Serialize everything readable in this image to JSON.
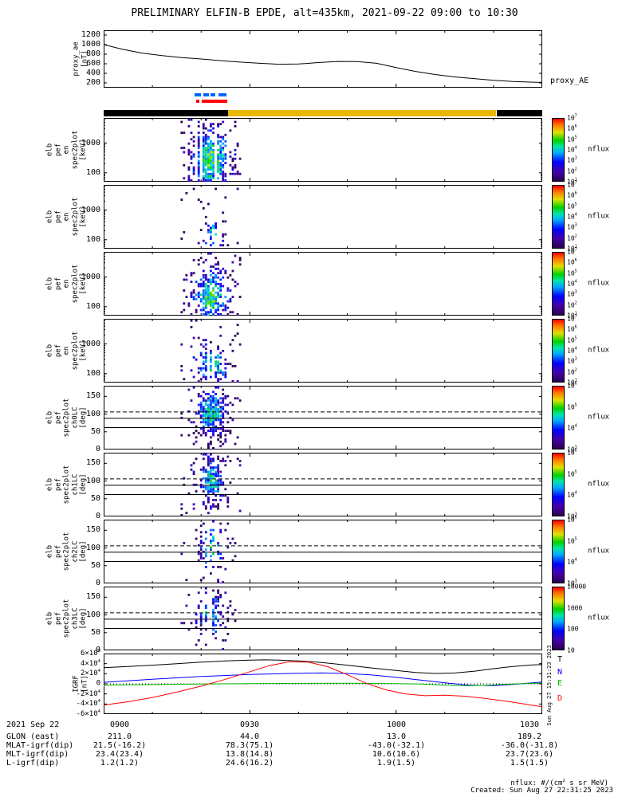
{
  "title": "PRELIMINARY ELFIN-B EPDE, alt=435km, 2021-09-22 09:00 to 10:30",
  "footer": {
    "units_note": "nflux: #/(cm^2 s sr MeV)",
    "created": "Created: Sun Aug 27 22:31:25 2023",
    "side_timestamp": "Sun Aug 27 15:31:23 2023"
  },
  "time_axis": {
    "tick_labels": [
      "0900",
      "0930",
      "1000",
      "1030"
    ],
    "tick_minutes": [
      0,
      30,
      60,
      90
    ],
    "minor_step_minutes": 10,
    "total_minutes": 90
  },
  "var_table": {
    "rows": [
      {
        "label": "2021 Sep 22",
        "values": [
          "0900",
          "0930",
          "1000",
          "1030"
        ]
      },
      {
        "label": "GLON (east)",
        "values": [
          "211.0",
          "44.0",
          "13.0",
          "189.2"
        ]
      },
      {
        "label": "MLAT-igrf(dip)",
        "values": [
          "21.5(-16.2)",
          "78.3(75.1)",
          "-43.0(-32.1)",
          "-36.0(-31.8)"
        ]
      },
      {
        "label": "MLT-igrf(dip)",
        "values": [
          "23.4(23.4)",
          "13.8(14.8)",
          "10.6(10.6)",
          "23.7(23.6)"
        ]
      },
      {
        "label": "L-igrf(dip)",
        "values": [
          "1.2(1.2)",
          "24.6(16.2)",
          "1.9(1.5)",
          "1.5(1.5)"
        ]
      }
    ]
  },
  "chart_data": {
    "type": "multi-panel-timeseries-spectrogram",
    "colormap_stops": [
      [
        0,
        40,
        0,
        80
      ],
      [
        0.15,
        70,
        0,
        170
      ],
      [
        0.3,
        0,
        0,
        255
      ],
      [
        0.45,
        0,
        170,
        255
      ],
      [
        0.55,
        0,
        230,
        170
      ],
      [
        0.65,
        0,
        210,
        0
      ],
      [
        0.78,
        225,
        225,
        0
      ],
      [
        0.9,
        255,
        120,
        0
      ],
      [
        1,
        255,
        0,
        0
      ]
    ],
    "proxy_ae": {
      "ylabel_lines": [
        "proxy_ae",
        "[nT]"
      ],
      "right_label": "proxy_AE",
      "ylim": [
        100,
        1300
      ],
      "yticks": [
        200,
        400,
        600,
        800,
        1000,
        1200
      ],
      "color": "#000000",
      "t": [
        0,
        4,
        8,
        12,
        16,
        20,
        24,
        28,
        32,
        36,
        40,
        44,
        48,
        52,
        56,
        60,
        64,
        68,
        72,
        76,
        80,
        84,
        88,
        90
      ],
      "v": [
        1000,
        900,
        820,
        770,
        730,
        700,
        665,
        635,
        610,
        590,
        595,
        625,
        648,
        645,
        610,
        520,
        440,
        375,
        325,
        290,
        255,
        230,
        215,
        210
      ]
    },
    "science_zone_flags": {
      "blue": {
        "color": "#0064ff",
        "segments_min": [
          [
            18.6,
            19.9
          ],
          [
            20.5,
            21.6
          ],
          [
            22.0,
            22.9
          ],
          [
            23.5,
            25.2
          ]
        ]
      },
      "red": {
        "color": "#ff0000",
        "segments_min": [
          [
            18.9,
            19.6
          ],
          [
            20.1,
            25.3
          ]
        ]
      }
    },
    "epoch_bar": {
      "segments": [
        {
          "color": "#000000",
          "range_min": [
            0,
            25.5
          ]
        },
        {
          "color": "#e8b800",
          "range_min": [
            25.5,
            80.6
          ]
        },
        {
          "color": "#000000",
          "range_min": [
            80.6,
            90
          ]
        }
      ]
    },
    "spectrograms": [
      {
        "id": "en_ch0",
        "ylabel_lines": [
          "elb",
          "pef",
          "en",
          "spec2plot",
          "[keV]"
        ],
        "yscale": "log",
        "ylim": [
          50,
          7000
        ],
        "ytick_values": [
          100,
          1000
        ],
        "ytick_labels": [
          "100",
          "1000"
        ],
        "colorbar_ticks": [
          "10^7",
          "10^6",
          "10^5",
          "10^4",
          "10^3",
          "10^2",
          "10^1"
        ],
        "colorbar_label": "nflux",
        "burst": {
          "seed": 11,
          "t_center": 22.0,
          "t_sigma": 2.6,
          "y_center": 0.34,
          "y_sigma": 0.32,
          "density": 0.95,
          "peak": 0.63,
          "fleck_density": 0.1
        }
      },
      {
        "id": "en_ch1",
        "ylabel_lines": [
          "elb",
          "pef",
          "en",
          "spec2plot",
          "[keV]"
        ],
        "yscale": "log",
        "ylim": [
          50,
          7000
        ],
        "ytick_values": [
          100,
          1000
        ],
        "ytick_labels": [
          "100",
          "1000"
        ],
        "colorbar_ticks": [
          "10^7",
          "10^6",
          "10^5",
          "10^4",
          "10^3",
          "10^2",
          "10^1"
        ],
        "colorbar_label": "nflux",
        "burst": {
          "seed": 22,
          "t_center": 22.3,
          "t_sigma": 1.5,
          "y_center": 0.22,
          "y_sigma": 0.15,
          "density": 0.45,
          "peak": 0.5,
          "fleck_density": 0.07
        }
      },
      {
        "id": "en_ch2",
        "ylabel_lines": [
          "elb",
          "pef",
          "en",
          "spec2plot",
          "[keV]"
        ],
        "yscale": "log",
        "ylim": [
          50,
          7000
        ],
        "ytick_values": [
          100,
          1000
        ],
        "ytick_labels": [
          "100",
          "1000"
        ],
        "colorbar_ticks": [
          "10^7",
          "10^6",
          "10^5",
          "10^4",
          "10^3",
          "10^2",
          "10^1"
        ],
        "colorbar_label": "nflux",
        "burst": {
          "seed": 33,
          "t_center": 22.0,
          "t_sigma": 2.3,
          "y_center": 0.3,
          "y_sigma": 0.28,
          "density": 0.9,
          "peak": 0.62,
          "fleck_density": 0.09
        }
      },
      {
        "id": "en_ch3",
        "ylabel_lines": [
          "elb",
          "pef",
          "en",
          "spec2plot",
          "[keV]"
        ],
        "yscale": "log",
        "ylim": [
          50,
          7000
        ],
        "ytick_values": [
          100,
          1000
        ],
        "ytick_labels": [
          "100",
          "1000"
        ],
        "colorbar_ticks": [
          "10^7",
          "10^6",
          "10^5",
          "10^4",
          "10^3",
          "10^2",
          "10^1"
        ],
        "colorbar_label": "nflux",
        "burst": {
          "seed": 44,
          "t_center": 22.2,
          "t_sigma": 2.0,
          "y_center": 0.28,
          "y_sigma": 0.2,
          "density": 0.62,
          "peak": 0.58,
          "fleck_density": 0.09
        }
      },
      {
        "id": "pa_ch0",
        "ylabel_lines": [
          "elb",
          "pef",
          "spec2plot",
          "ch0LC",
          "[deg]"
        ],
        "yscale": "linear",
        "ylim": [
          0,
          180
        ],
        "ytick_values": [
          0,
          50,
          100,
          150
        ],
        "ytick_labels": [
          "0",
          "50",
          "100",
          "150"
        ],
        "overlay_lines": [
          {
            "style": "dashed",
            "value": 106
          },
          {
            "style": "solid",
            "value": 88
          },
          {
            "style": "solid",
            "value": 62
          }
        ],
        "colorbar_ticks": [
          "10^6",
          "10^5",
          "10^4",
          "10^3"
        ],
        "colorbar_label": "nflux",
        "burst": {
          "seed": 55,
          "t_center": 22.0,
          "t_sigma": 2.0,
          "y_center": 0.58,
          "y_sigma": 0.26,
          "density": 0.92,
          "peak": 0.52,
          "fleck_density": 0.08
        }
      },
      {
        "id": "pa_ch1",
        "ylabel_lines": [
          "elb",
          "pef",
          "spec2plot",
          "ch1LC",
          "[deg]"
        ],
        "yscale": "linear",
        "ylim": [
          0,
          180
        ],
        "ytick_values": [
          0,
          50,
          100,
          150
        ],
        "ytick_labels": [
          "0",
          "50",
          "100",
          "150"
        ],
        "overlay_lines": [
          {
            "style": "dashed",
            "value": 106
          },
          {
            "style": "solid",
            "value": 88
          },
          {
            "style": "solid",
            "value": 62
          }
        ],
        "colorbar_ticks": [
          "10^6",
          "10^5",
          "10^4",
          "10^3"
        ],
        "colorbar_label": "nflux",
        "burst": {
          "seed": 66,
          "t_center": 22.0,
          "t_sigma": 1.8,
          "y_center": 0.57,
          "y_sigma": 0.24,
          "density": 0.8,
          "peak": 0.5,
          "fleck_density": 0.07
        }
      },
      {
        "id": "pa_ch2",
        "ylabel_lines": [
          "elb",
          "pef",
          "spec2plot",
          "ch2LC",
          "[deg]"
        ],
        "yscale": "linear",
        "ylim": [
          0,
          180
        ],
        "ytick_values": [
          0,
          50,
          100,
          150
        ],
        "ytick_labels": [
          "0",
          "50",
          "100",
          "150"
        ],
        "overlay_lines": [
          {
            "style": "dashed",
            "value": 106
          },
          {
            "style": "solid",
            "value": 88
          },
          {
            "style": "solid",
            "value": 62
          }
        ],
        "colorbar_ticks": [
          "10^6",
          "10^5",
          "10^4",
          "10^3"
        ],
        "colorbar_label": "nflux",
        "burst": {
          "seed": 77,
          "t_center": 22.0,
          "t_sigma": 1.6,
          "y_center": 0.56,
          "y_sigma": 0.22,
          "density": 0.7,
          "peak": 0.5,
          "fleck_density": 0.06
        }
      },
      {
        "id": "pa_ch3",
        "ylabel_lines": [
          "elb",
          "pef",
          "spec2plot",
          "ch3LC",
          "[deg]"
        ],
        "yscale": "linear",
        "ylim": [
          0,
          180
        ],
        "ytick_values": [
          0,
          50,
          100,
          150
        ],
        "ytick_labels": [
          "0",
          "50",
          "100",
          "150"
        ],
        "overlay_lines": [
          {
            "style": "dashed",
            "value": 106
          },
          {
            "style": "solid",
            "value": 88
          },
          {
            "style": "solid",
            "value": 62
          }
        ],
        "colorbar_ticks": [
          "10000",
          "1000",
          "100",
          "10"
        ],
        "colorbar_label": "nflux",
        "burst": {
          "seed": 88,
          "t_center": 22.0,
          "t_sigma": 1.7,
          "y_center": 0.56,
          "y_sigma": 0.24,
          "density": 0.62,
          "peak": 0.5,
          "fleck_density": 0.07
        }
      }
    ],
    "igrf": {
      "ylabel_lines": [
        "IGRF",
        "[nT]"
      ],
      "ylim": [
        -60000,
        60000
      ],
      "ytick_values": [
        60000,
        40000,
        20000,
        0,
        -20000,
        -40000,
        -60000
      ],
      "ytick_labels": [
        "6×10^4",
        "4×10^4",
        "2×10^4",
        "0",
        "-2×10^4",
        "-4×10^4",
        "-6×10^4"
      ],
      "series": [
        {
          "name": "T",
          "color": "#000000",
          "t": [
            0,
            5,
            10,
            15,
            20,
            25,
            30,
            33,
            36,
            40,
            45,
            50,
            55,
            60,
            64,
            68,
            72,
            76,
            80,
            84,
            88,
            90
          ],
          "v": [
            32000,
            34500,
            37000,
            40000,
            43000,
            45500,
            47000,
            47500,
            47000,
            45500,
            42000,
            37000,
            31500,
            26500,
            22500,
            20500,
            21500,
            25000,
            30000,
            34500,
            37500,
            38000
          ]
        },
        {
          "name": "N",
          "color": "#0000ff",
          "t": [
            0,
            10,
            20,
            30,
            40,
            45,
            50,
            55,
            60,
            65,
            70,
            75,
            80,
            85,
            90
          ],
          "v": [
            3000,
            9000,
            14500,
            18500,
            21000,
            21500,
            20500,
            17500,
            13000,
            7500,
            2000,
            -2500,
            -3500,
            -500,
            3500
          ]
        },
        {
          "name": "E",
          "color": "#00b400",
          "t": [
            0,
            10,
            20,
            30,
            40,
            50,
            60,
            65,
            70,
            74,
            78,
            82,
            86,
            90
          ],
          "v": [
            -2500,
            -1500,
            -500,
            500,
            1000,
            1200,
            500,
            -500,
            -2500,
            -4000,
            -3000,
            -1000,
            500,
            1500
          ]
        },
        {
          "name": "D",
          "color": "#ff0000",
          "t": [
            0,
            5,
            10,
            15,
            20,
            25,
            30,
            34,
            38,
            42,
            46,
            50,
            54,
            58,
            62,
            66,
            70,
            74,
            78,
            82,
            86,
            90
          ],
          "v": [
            -42000,
            -35500,
            -27000,
            -16500,
            -4500,
            9000,
            24000,
            36000,
            43500,
            43000,
            34000,
            18000,
            500,
            -12000,
            -20000,
            -23500,
            -22500,
            -24500,
            -28500,
            -33500,
            -39500,
            -45500
          ]
        }
      ]
    }
  }
}
